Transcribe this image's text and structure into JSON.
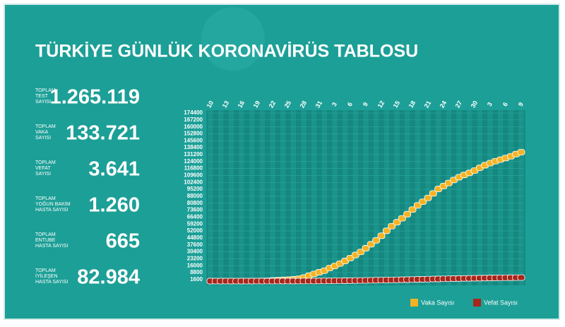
{
  "header": {
    "title": "TÜRKİYE GÜNLÜK KORONAVİRÜS TABLOSU"
  },
  "stats": [
    {
      "label_lines": [
        "TOPLAM",
        "TEST",
        "SAYISI"
      ],
      "value": "1.265.119"
    },
    {
      "label_lines": [
        "TOPLAM",
        "VAKA",
        "SAYISI"
      ],
      "value": "133.721"
    },
    {
      "label_lines": [
        "TOPLAM",
        "VEFAT",
        "SAYISI"
      ],
      "value": "3.641"
    },
    {
      "label_lines": [
        "TOPLAM",
        "YOĞUN BAKIM",
        "HASTA SAYISI"
      ],
      "value": "1.260"
    },
    {
      "label_lines": [
        "TOPLAM",
        "ENTUBE",
        "HASTA SAYISI"
      ],
      "value": "665"
    },
    {
      "label_lines": [
        "TOPLAM",
        "İYİLEŞEN",
        "HASTA SAYISI"
      ],
      "value": "82.984"
    }
  ],
  "chart_data": {
    "type": "line",
    "categories": [
      "10",
      null,
      null,
      "13",
      null,
      null,
      "16",
      null,
      null,
      "19",
      null,
      null,
      "22",
      null,
      null,
      "25",
      null,
      null,
      "28",
      null,
      null,
      "31",
      null,
      null,
      "3",
      null,
      null,
      "6",
      null,
      null,
      "9",
      null,
      null,
      "12",
      null,
      null,
      "15",
      null,
      null,
      "18",
      null,
      null,
      "21",
      null,
      null,
      "24",
      null,
      null,
      "27",
      null,
      null,
      "30",
      null,
      null,
      "3",
      null,
      null,
      "6",
      null,
      null,
      "9"
    ],
    "series": [
      {
        "name": "Vaka Sayısı",
        "color": "#f5b324",
        "values": [
          1,
          1,
          1,
          1,
          1,
          5,
          6,
          18,
          47,
          98,
          191,
          359,
          670,
          947,
          1236,
          1529,
          1872,
          2433,
          3629,
          5698,
          7402,
          9217,
          10827,
          13531,
          15679,
          18135,
          20921,
          23934,
          27069,
          30217,
          34109,
          38226,
          42282,
          47029,
          52167,
          56956,
          61049,
          65111,
          69392,
          74193,
          78546,
          82329,
          86306,
          90980,
          95591,
          98674,
          101790,
          104912,
          107773,
          110130,
          112261,
          114653,
          117589,
          120204,
          122392,
          124375,
          126045,
          127659,
          129491,
          131744,
          133721
        ]
      },
      {
        "name": "Vefat Sayısı",
        "color": "#a8261b",
        "values": [
          0,
          0,
          0,
          0,
          0,
          0,
          0,
          0,
          0,
          1,
          2,
          3,
          9,
          21,
          30,
          37,
          44,
          59,
          75,
          92,
          108,
          131,
          168,
          214,
          277,
          356,
          425,
          501,
          574,
          649,
          725,
          812,
          908,
          1006,
          1101,
          1198,
          1296,
          1403,
          1518,
          1643,
          1769,
          1890,
          2017,
          2140,
          2259,
          2376,
          2491,
          2600,
          2706,
          2805,
          2900,
          2992,
          3081,
          3174,
          3258,
          3336,
          3397,
          3461,
          3520,
          3584,
          3641
        ]
      }
    ],
    "ylim": [
      0,
      174400
    ],
    "yticks": [
      1600,
      8800,
      16000,
      23200,
      30400,
      37600,
      44800,
      52000,
      59200,
      66400,
      73600,
      80800,
      88000,
      95200,
      102400,
      109600,
      116800,
      124000,
      131200,
      138400,
      145600,
      152800,
      160000,
      167200,
      174400
    ],
    "grid": true
  }
}
